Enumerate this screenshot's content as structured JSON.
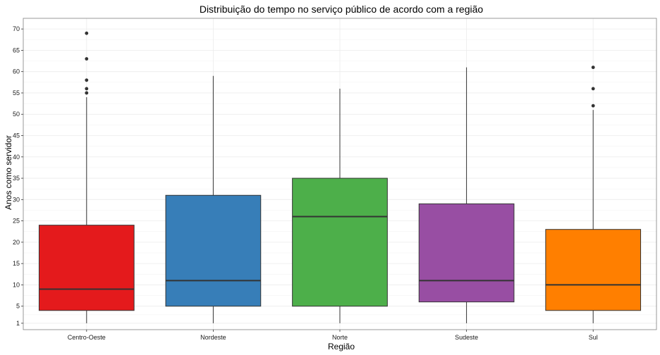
{
  "chart_data": {
    "type": "boxplot",
    "title": "Distribuição do tempo no serviço público de acordo com a região",
    "xlabel": "Região",
    "ylabel": "Anos como servidor",
    "y_ticks": [
      1,
      5,
      10,
      15,
      20,
      25,
      30,
      35,
      40,
      45,
      50,
      55,
      60,
      65,
      70
    ],
    "ylim": [
      -0.5,
      72.5
    ],
    "grid": true,
    "categories": [
      "Centro-Oeste",
      "Nordeste",
      "Norte",
      "Sudeste",
      "Sul"
    ],
    "boxes": [
      {
        "category": "Centro-Oeste",
        "color": "#E41A1C",
        "whisker_low": 1,
        "q1": 4,
        "median": 9,
        "q3": 24,
        "whisker_high": 54,
        "outliers": [
          55,
          56,
          58,
          63,
          69
        ]
      },
      {
        "category": "Nordeste",
        "color": "#377EB8",
        "whisker_low": 1,
        "q1": 5,
        "median": 11,
        "q3": 31,
        "whisker_high": 59,
        "outliers": []
      },
      {
        "category": "Norte",
        "color": "#4DAF4A",
        "whisker_low": 1,
        "q1": 5,
        "median": 26,
        "q3": 35,
        "whisker_high": 56,
        "outliers": []
      },
      {
        "category": "Sudeste",
        "color": "#984EA3",
        "whisker_low": 1,
        "q1": 6,
        "median": 11,
        "q3": 29,
        "whisker_high": 61,
        "outliers": []
      },
      {
        "category": "Sul",
        "color": "#FF7F00",
        "whisker_low": 1,
        "q1": 4,
        "median": 10,
        "q3": 23,
        "whisker_high": 51,
        "outliers": [
          52,
          56,
          61
        ]
      }
    ]
  }
}
